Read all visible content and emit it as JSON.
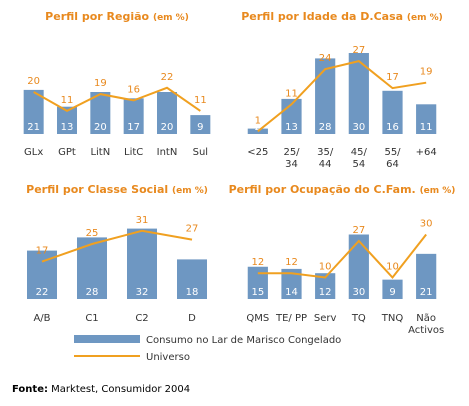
{
  "chart_data": [
    {
      "type": "bar",
      "title": "Perfil por Região",
      "title_unit": "(em %)",
      "categories": [
        [
          "GLx"
        ],
        [
          "GPt"
        ],
        [
          "LitN"
        ],
        [
          "LitC"
        ],
        [
          "IntN"
        ],
        [
          "Sul"
        ]
      ],
      "series": [
        {
          "name": "Consumo no Lar de Marisco Congelado",
          "type": "bar",
          "values": [
            21,
            13,
            20,
            17,
            20,
            9
          ]
        },
        {
          "name": "Universo",
          "type": "line",
          "values": [
            20,
            11,
            19,
            16,
            22,
            11
          ]
        }
      ]
    },
    {
      "type": "bar",
      "title": "Perfil por Idade da D.Casa",
      "title_unit": "(em %)",
      "categories": [
        [
          "<25"
        ],
        [
          "25/",
          "34"
        ],
        [
          "35/",
          "44"
        ],
        [
          "45/",
          "54"
        ],
        [
          "55/",
          "64"
        ],
        [
          "+64"
        ]
      ],
      "series": [
        {
          "name": "Consumo no Lar de Marisco Congelado",
          "type": "bar",
          "values": [
            2,
            13,
            28,
            30,
            16,
            11
          ]
        },
        {
          "name": "Universo",
          "type": "line",
          "values": [
            1,
            11,
            24,
            27,
            17,
            19
          ]
        }
      ]
    },
    {
      "type": "bar",
      "title": "Perfil por Classe Social",
      "title_unit": "(em %)",
      "categories": [
        [
          "A/B"
        ],
        [
          "C1"
        ],
        [
          "C2"
        ],
        [
          "D"
        ]
      ],
      "series": [
        {
          "name": "Consumo no Lar de Marisco Congelado",
          "type": "bar",
          "values": [
            22,
            28,
            32,
            18
          ]
        },
        {
          "name": "Universo",
          "type": "line",
          "values": [
            17,
            25,
            31,
            27
          ]
        }
      ]
    },
    {
      "type": "bar",
      "title": "Perfil por Ocupação do C.Fam.",
      "title_unit": "(em %)",
      "categories": [
        [
          "QMS"
        ],
        [
          "TE/ PP"
        ],
        [
          "Serv"
        ],
        [
          "TQ"
        ],
        [
          "TNQ"
        ],
        [
          "Não",
          "Activos"
        ]
      ],
      "series": [
        {
          "name": "Consumo no Lar de Marisco Congelado",
          "type": "bar",
          "values": [
            15,
            14,
            12,
            30,
            9,
            21
          ]
        },
        {
          "name": "Universo",
          "type": "line",
          "values": [
            12,
            12,
            10,
            27,
            10,
            30
          ]
        }
      ]
    }
  ],
  "legend": {
    "bar_label": "Consumo no Lar de Marisco Congelado",
    "line_label": "Universo"
  },
  "source": {
    "label": "Fonte:",
    "text": " Marktest, Consumidor 2004"
  },
  "colors": {
    "bar": "#6E97C2",
    "line": "#F0A020",
    "title": "#E8891E"
  }
}
